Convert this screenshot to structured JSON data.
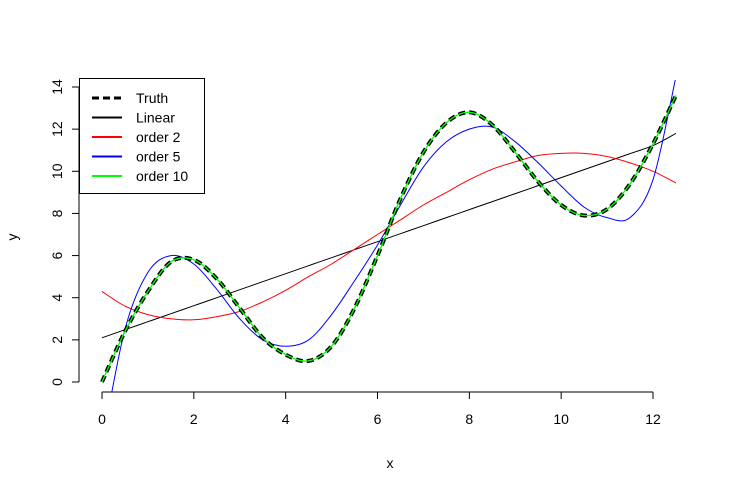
{
  "chart_data": {
    "type": "line",
    "title": "",
    "xlabel": "x",
    "ylabel": "y",
    "xlim": [
      0,
      12.5
    ],
    "ylim": [
      0,
      14
    ],
    "x_ticks": [
      0,
      2,
      4,
      6,
      8,
      10,
      12
    ],
    "y_ticks": [
      0,
      2,
      4,
      6,
      8,
      10,
      12,
      14
    ],
    "grid": false,
    "legend_position": "top-left",
    "x": [
      0,
      0.5,
      1,
      1.5,
      2,
      2.5,
      3,
      3.5,
      4,
      4.5,
      5,
      5.5,
      6,
      6.5,
      7,
      7.5,
      8,
      8.5,
      9,
      9.5,
      10,
      10.5,
      11,
      11.5,
      12,
      12.5
    ],
    "series": [
      {
        "name": "Truth",
        "color": "#000000",
        "dash": "dashed",
        "values": [
          0.0,
          2.4,
          4.3,
          5.7,
          5.8,
          4.9,
          3.5,
          2.1,
          1.3,
          1.0,
          1.7,
          3.5,
          6.0,
          8.7,
          10.9,
          12.3,
          12.8,
          12.2,
          10.9,
          9.5,
          8.4,
          7.9,
          8.2,
          9.4,
          11.3,
          13.6
        ]
      },
      {
        "name": "Linear",
        "color": "#000000",
        "dash": "solid",
        "values": [
          2.1,
          2.48,
          2.86,
          3.24,
          3.62,
          4.0,
          4.38,
          4.76,
          5.14,
          5.52,
          5.9,
          6.28,
          6.66,
          7.04,
          7.42,
          7.8,
          8.18,
          8.56,
          8.94,
          9.32,
          9.7,
          10.08,
          10.46,
          10.84,
          11.22,
          11.8
        ]
      },
      {
        "name": "order 2",
        "color": "#ff0000",
        "dash": "solid",
        "values": [
          4.3,
          3.6,
          3.2,
          3.0,
          2.95,
          3.1,
          3.35,
          3.8,
          4.35,
          5.0,
          5.6,
          6.3,
          7.0,
          7.7,
          8.4,
          9.0,
          9.6,
          10.1,
          10.45,
          10.75,
          10.85,
          10.85,
          10.7,
          10.4,
          10.0,
          9.45
        ]
      },
      {
        "name": "order 5",
        "color": "#0000ff",
        "dash": "solid",
        "values": [
          -3.0,
          2.5,
          5.2,
          6.0,
          5.6,
          4.4,
          3.0,
          2.0,
          1.7,
          2.0,
          3.2,
          4.8,
          6.5,
          8.4,
          10.2,
          11.4,
          12.0,
          12.1,
          11.4,
          10.4,
          9.3,
          8.3,
          7.8,
          7.8,
          9.6,
          14.5
        ]
      },
      {
        "name": "order 10",
        "color": "#00ff00",
        "dash": "solid",
        "values": [
          0.0,
          2.4,
          4.3,
          5.7,
          5.8,
          4.9,
          3.5,
          2.1,
          1.3,
          1.0,
          1.7,
          3.5,
          6.0,
          8.7,
          10.9,
          12.3,
          12.8,
          12.2,
          10.9,
          9.5,
          8.4,
          7.9,
          8.2,
          9.4,
          11.3,
          13.6
        ]
      }
    ]
  }
}
